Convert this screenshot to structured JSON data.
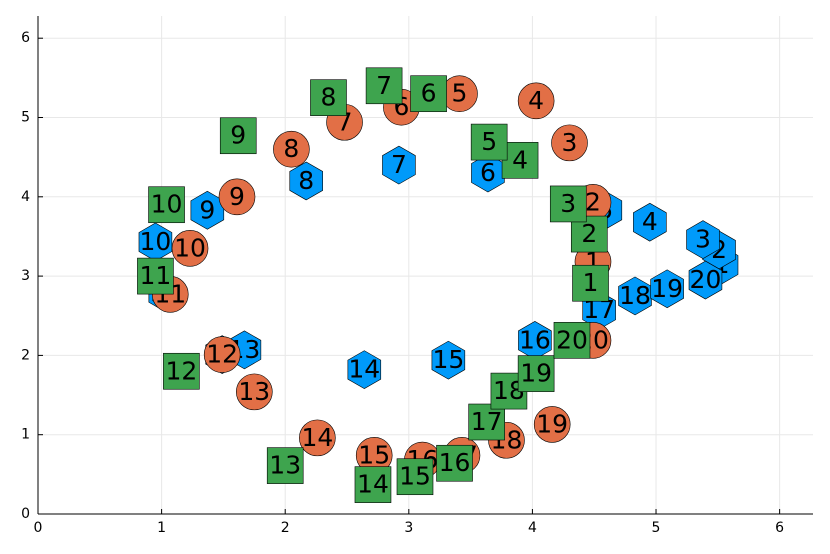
{
  "chart_data": {
    "type": "scatter",
    "xlim": [
      0,
      6.27
    ],
    "ylim": [
      0,
      6.28
    ],
    "xticks": [
      0,
      1,
      2,
      3,
      4,
      5,
      6
    ],
    "yticks": [
      0,
      1,
      2,
      3,
      4,
      5,
      6
    ],
    "grid": true,
    "point_labels": [
      "1",
      "2",
      "3",
      "4",
      "5",
      "6",
      "7",
      "8",
      "9",
      "10",
      "11",
      "12",
      "13",
      "14",
      "15",
      "16",
      "17",
      "18",
      "19",
      "20"
    ],
    "series": [
      {
        "color": "#009afa",
        "marker": "hexagon",
        "x": [
          5.53,
          5.51,
          5.38,
          4.95,
          4.59,
          3.64,
          2.92,
          2.17,
          1.37,
          0.95,
          1.03,
          1.49,
          1.67,
          2.64,
          3.32,
          4.02,
          4.54,
          4.83,
          5.09,
          5.4
        ],
        "values": [
          3.14,
          3.33,
          3.46,
          3.68,
          3.83,
          4.3,
          4.4,
          4.2,
          3.83,
          3.43,
          2.79,
          2.01,
          2.07,
          1.82,
          1.94,
          2.19,
          2.57,
          2.75,
          2.84,
          2.95
        ]
      },
      {
        "color": "#e26f46",
        "marker": "circle",
        "x": [
          4.49,
          4.49,
          4.3,
          4.03,
          3.41,
          2.94,
          2.48,
          2.05,
          1.61,
          1.23,
          1.07,
          1.49,
          1.75,
          2.26,
          2.72,
          3.11,
          3.43,
          3.79,
          4.16,
          4.49
        ],
        "values": [
          3.18,
          3.93,
          4.68,
          5.21,
          5.3,
          5.13,
          4.94,
          4.6,
          4.0,
          3.35,
          2.77,
          2.01,
          1.54,
          0.96,
          0.74,
          0.68,
          0.74,
          0.93,
          1.13,
          2.19
        ]
      },
      {
        "color": "#3ea44e",
        "marker": "square",
        "x": [
          4.47,
          4.46,
          4.29,
          3.9,
          3.65,
          3.16,
          2.8,
          2.35,
          1.62,
          1.04,
          0.95,
          1.16,
          2.0,
          2.71,
          3.05,
          3.37,
          3.63,
          3.81,
          4.03,
          4.32
        ],
        "values": [
          2.91,
          3.53,
          3.91,
          4.46,
          4.69,
          5.3,
          5.4,
          5.25,
          4.77,
          3.9,
          3.0,
          1.8,
          0.61,
          0.37,
          0.47,
          0.64,
          1.16,
          1.55,
          1.77,
          2.19
        ]
      }
    ]
  }
}
